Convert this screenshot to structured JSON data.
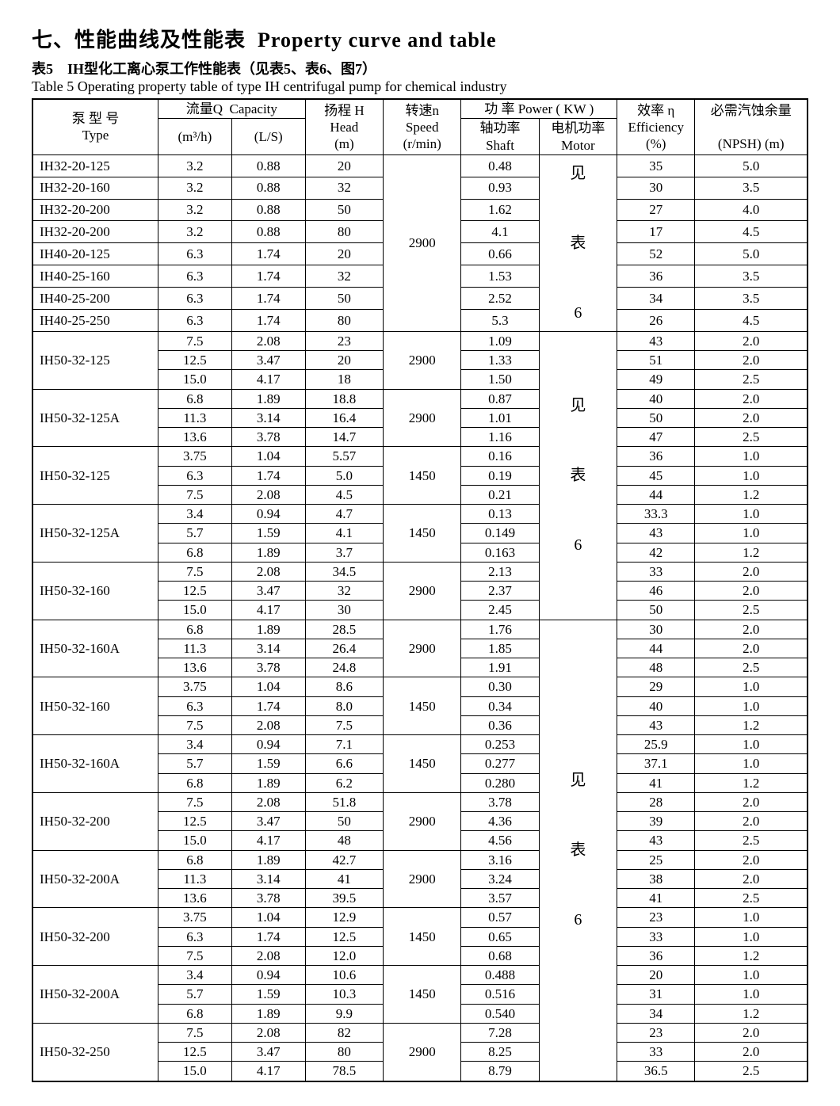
{
  "title": {
    "cn": "七、性能曲线及性能表",
    "en": "Property curve and table"
  },
  "subtitle": {
    "cn": "表5　IH型化工离心泵工作性能表（见表5、表6、图7）",
    "en": "Table 5  Operating property table of type IH centrifugal pump for chemical industry"
  },
  "header": {
    "type_cn": "泵 型 号",
    "type_en": "Type",
    "q_cn": "流量Q",
    "q_en": "Capacity",
    "q_unit1": "(m³/h)",
    "q_unit2": "(L/S)",
    "head_cn": "扬程 H",
    "head_en": "Head",
    "head_unit": "(m)",
    "speed_cn": "转速n",
    "speed_en": "Speed",
    "speed_unit": "(r/min)",
    "power_cn": "功 率 Power ( KW )",
    "shaft_cn": "轴功率",
    "shaft_en": "Shaft",
    "motor_cn": "电机功率",
    "motor_en": "Motor",
    "eff_cn": "效率 η",
    "eff_en": "Efficiency",
    "eff_unit": "(%)",
    "npsh_cn": "必需汽蚀余量",
    "npsh_en": "(NPSH)  (m)"
  },
  "motor_text": {
    "l1": "见",
    "l2": "表",
    "l3": "6"
  },
  "rows": [
    {
      "type": "IH32-20-125",
      "q1": "3.2",
      "q2": "0.88",
      "head": "20",
      "shaft": "0.48",
      "eff": "35",
      "npsh": "5.0"
    },
    {
      "type": "IH32-20-160",
      "q1": "3.2",
      "q2": "0.88",
      "head": "32",
      "shaft": "0.93",
      "eff": "30",
      "npsh": "3.5"
    },
    {
      "type": "IH32-20-200",
      "q1": "3.2",
      "q2": "0.88",
      "head": "50",
      "shaft": "1.62",
      "eff": "27",
      "npsh": "4.0"
    },
    {
      "type": "IH32-20-200",
      "q1": "3.2",
      "q2": "0.88",
      "head": "80",
      "shaft": "4.1",
      "eff": "17",
      "npsh": "4.5"
    },
    {
      "type": "IH40-20-125",
      "q1": "6.3",
      "q2": "1.74",
      "head": "20",
      "shaft": "0.66",
      "eff": "52",
      "npsh": "5.0"
    },
    {
      "type": "IH40-25-160",
      "q1": "6.3",
      "q2": "1.74",
      "head": "32",
      "shaft": "1.53",
      "eff": "36",
      "npsh": "3.5"
    },
    {
      "type": "IH40-25-200",
      "q1": "6.3",
      "q2": "1.74",
      "head": "50",
      "shaft": "2.52",
      "eff": "34",
      "npsh": "3.5"
    },
    {
      "type": "IH40-25-250",
      "q1": "6.3",
      "q2": "1.74",
      "head": "80",
      "shaft": "5.3",
      "eff": "26",
      "npsh": "4.5"
    }
  ],
  "groups": [
    {
      "type": "IH50-32-125",
      "speed": "2900",
      "r": [
        {
          "q1": "7.5",
          "q2": "2.08",
          "head": "23",
          "shaft": "1.09",
          "eff": "43",
          "npsh": "2.0"
        },
        {
          "q1": "12.5",
          "q2": "3.47",
          "head": "20",
          "shaft": "1.33",
          "eff": "51",
          "npsh": "2.0"
        },
        {
          "q1": "15.0",
          "q2": "4.17",
          "head": "18",
          "shaft": "1.50",
          "eff": "49",
          "npsh": "2.5"
        }
      ]
    },
    {
      "type": "IH50-32-125A",
      "speed": "2900",
      "r": [
        {
          "q1": "6.8",
          "q2": "1.89",
          "head": "18.8",
          "shaft": "0.87",
          "eff": "40",
          "npsh": "2.0"
        },
        {
          "q1": "11.3",
          "q2": "3.14",
          "head": "16.4",
          "shaft": "1.01",
          "eff": "50",
          "npsh": "2.0"
        },
        {
          "q1": "13.6",
          "q2": "3.78",
          "head": "14.7",
          "shaft": "1.16",
          "eff": "47",
          "npsh": "2.5"
        }
      ]
    },
    {
      "type": "IH50-32-125",
      "speed": "1450",
      "r": [
        {
          "q1": "3.75",
          "q2": "1.04",
          "head": "5.57",
          "shaft": "0.16",
          "eff": "36",
          "npsh": "1.0"
        },
        {
          "q1": "6.3",
          "q2": "1.74",
          "head": "5.0",
          "shaft": "0.19",
          "eff": "45",
          "npsh": "1.0"
        },
        {
          "q1": "7.5",
          "q2": "2.08",
          "head": "4.5",
          "shaft": "0.21",
          "eff": "44",
          "npsh": "1.2"
        }
      ]
    },
    {
      "type": "IH50-32-125A",
      "speed": "1450",
      "r": [
        {
          "q1": "3.4",
          "q2": "0.94",
          "head": "4.7",
          "shaft": "0.13",
          "eff": "33.3",
          "npsh": "1.0"
        },
        {
          "q1": "5.7",
          "q2": "1.59",
          "head": "4.1",
          "shaft": "0.149",
          "eff": "43",
          "npsh": "1.0"
        },
        {
          "q1": "6.8",
          "q2": "1.89",
          "head": "3.7",
          "shaft": "0.163",
          "eff": "42",
          "npsh": "1.2"
        }
      ]
    },
    {
      "type": "IH50-32-160",
      "speed": "2900",
      "r": [
        {
          "q1": "7.5",
          "q2": "2.08",
          "head": "34.5",
          "shaft": "2.13",
          "eff": "33",
          "npsh": "2.0"
        },
        {
          "q1": "12.5",
          "q2": "3.47",
          "head": "32",
          "shaft": "2.37",
          "eff": "46",
          "npsh": "2.0"
        },
        {
          "q1": "15.0",
          "q2": "4.17",
          "head": "30",
          "shaft": "2.45",
          "eff": "50",
          "npsh": "2.5"
        }
      ]
    },
    {
      "type": "IH50-32-160A",
      "speed": "2900",
      "r": [
        {
          "q1": "6.8",
          "q2": "1.89",
          "head": "28.5",
          "shaft": "1.76",
          "eff": "30",
          "npsh": "2.0"
        },
        {
          "q1": "11.3",
          "q2": "3.14",
          "head": "26.4",
          "shaft": "1.85",
          "eff": "44",
          "npsh": "2.0"
        },
        {
          "q1": "13.6",
          "q2": "3.78",
          "head": "24.8",
          "shaft": "1.91",
          "eff": "48",
          "npsh": "2.5"
        }
      ]
    },
    {
      "type": "IH50-32-160",
      "speed": "1450",
      "r": [
        {
          "q1": "3.75",
          "q2": "1.04",
          "head": "8.6",
          "shaft": "0.30",
          "eff": "29",
          "npsh": "1.0"
        },
        {
          "q1": "6.3",
          "q2": "1.74",
          "head": "8.0",
          "shaft": "0.34",
          "eff": "40",
          "npsh": "1.0"
        },
        {
          "q1": "7.5",
          "q2": "2.08",
          "head": "7.5",
          "shaft": "0.36",
          "eff": "43",
          "npsh": "1.2"
        }
      ]
    },
    {
      "type": "IH50-32-160A",
      "speed": "1450",
      "r": [
        {
          "q1": "3.4",
          "q2": "0.94",
          "head": "7.1",
          "shaft": "0.253",
          "eff": "25.9",
          "npsh": "1.0"
        },
        {
          "q1": "5.7",
          "q2": "1.59",
          "head": "6.6",
          "shaft": "0.277",
          "eff": "37.1",
          "npsh": "1.0"
        },
        {
          "q1": "6.8",
          "q2": "1.89",
          "head": "6.2",
          "shaft": "0.280",
          "eff": "41",
          "npsh": "1.2"
        }
      ]
    },
    {
      "type": "IH50-32-200",
      "speed": "2900",
      "r": [
        {
          "q1": "7.5",
          "q2": "2.08",
          "head": "51.8",
          "shaft": "3.78",
          "eff": "28",
          "npsh": "2.0"
        },
        {
          "q1": "12.5",
          "q2": "3.47",
          "head": "50",
          "shaft": "4.36",
          "eff": "39",
          "npsh": "2.0"
        },
        {
          "q1": "15.0",
          "q2": "4.17",
          "head": "48",
          "shaft": "4.56",
          "eff": "43",
          "npsh": "2.5"
        }
      ]
    },
    {
      "type": "IH50-32-200A",
      "speed": "2900",
      "r": [
        {
          "q1": "6.8",
          "q2": "1.89",
          "head": "42.7",
          "shaft": "3.16",
          "eff": "25",
          "npsh": "2.0"
        },
        {
          "q1": "11.3",
          "q2": "3.14",
          "head": "41",
          "shaft": "3.24",
          "eff": "38",
          "npsh": "2.0"
        },
        {
          "q1": "13.6",
          "q2": "3.78",
          "head": "39.5",
          "shaft": "3.57",
          "eff": "41",
          "npsh": "2.5"
        }
      ]
    },
    {
      "type": "IH50-32-200",
      "speed": "1450",
      "r": [
        {
          "q1": "3.75",
          "q2": "1.04",
          "head": "12.9",
          "shaft": "0.57",
          "eff": "23",
          "npsh": "1.0"
        },
        {
          "q1": "6.3",
          "q2": "1.74",
          "head": "12.5",
          "shaft": "0.65",
          "eff": "33",
          "npsh": "1.0"
        },
        {
          "q1": "7.5",
          "q2": "2.08",
          "head": "12.0",
          "shaft": "0.68",
          "eff": "36",
          "npsh": "1.2"
        }
      ]
    },
    {
      "type": "IH50-32-200A",
      "speed": "1450",
      "r": [
        {
          "q1": "3.4",
          "q2": "0.94",
          "head": "10.6",
          "shaft": "0.488",
          "eff": "20",
          "npsh": "1.0"
        },
        {
          "q1": "5.7",
          "q2": "1.59",
          "head": "10.3",
          "shaft": "0.516",
          "eff": "31",
          "npsh": "1.0"
        },
        {
          "q1": "6.8",
          "q2": "1.89",
          "head": "9.9",
          "shaft": "0.540",
          "eff": "34",
          "npsh": "1.2"
        }
      ]
    },
    {
      "type": "IH50-32-250",
      "speed": "2900",
      "r": [
        {
          "q1": "7.5",
          "q2": "2.08",
          "head": "82",
          "shaft": "7.28",
          "eff": "23",
          "npsh": "2.0"
        },
        {
          "q1": "12.5",
          "q2": "3.47",
          "head": "80",
          "shaft": "8.25",
          "eff": "33",
          "npsh": "2.0"
        },
        {
          "q1": "15.0",
          "q2": "4.17",
          "head": "78.5",
          "shaft": "8.79",
          "eff": "36.5",
          "npsh": "2.5"
        }
      ]
    }
  ],
  "speed_block1": "2900",
  "motor_spans": [
    8,
    15,
    24
  ]
}
